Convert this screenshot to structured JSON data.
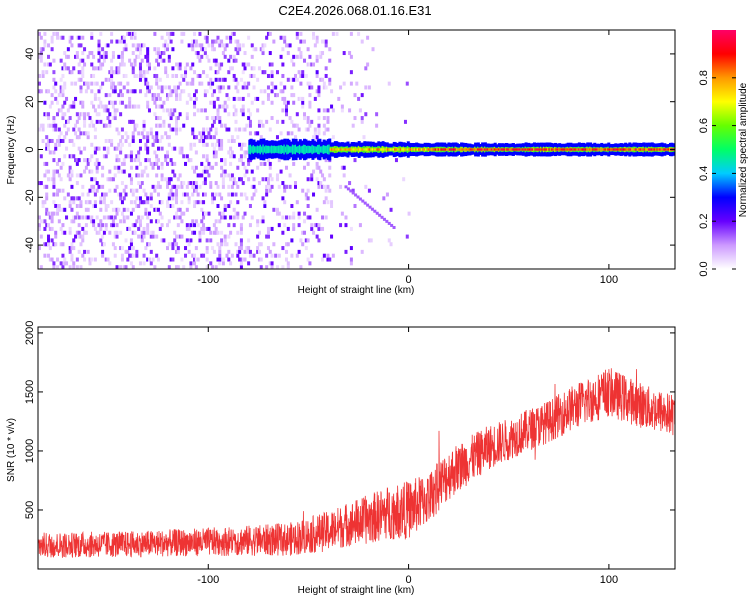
{
  "title": "C2E4.2026.068.01.16.E31",
  "chart_data": [
    {
      "type": "heatmap",
      "xlabel": "Height of straight line (km)",
      "ylabel": "Frequency (Hz)",
      "xlim": [
        -185,
        133
      ],
      "ylim": [
        -50,
        50
      ],
      "xticks": [
        -100,
        0,
        100
      ],
      "yticks": [
        -40,
        -20,
        0,
        20,
        40
      ],
      "colorbar": {
        "label": "Normalized spectral amplitude",
        "range": [
          0,
          1
        ],
        "ticks": [
          0.0,
          0.2,
          0.4,
          0.6,
          0.8
        ],
        "tick_labels": [
          "0.0",
          "0.2",
          "0.4",
          "0.6",
          "0.8"
        ],
        "colors": [
          "#ffffff",
          "#cc99ff",
          "#6600ff",
          "#0000ff",
          "#00ccff",
          "#00ff66",
          "#66ff00",
          "#ffff00",
          "#ff9900",
          "#ff0000",
          "#ff0066"
        ]
      },
      "features": {
        "noise_region_x": [
          -185,
          -40
        ],
        "carrier_frequency_hz": 0,
        "carrier_x_start": -80,
        "drift_line": {
          "x": [
            -32,
            -8
          ],
          "y": [
            -15,
            -32
          ]
        }
      }
    },
    {
      "type": "line",
      "xlabel": "Height of straight line (km)",
      "ylabel": "SNR (10 * v/v)",
      "xlim": [
        -185,
        133
      ],
      "ylim": [
        0,
        2050
      ],
      "xticks": [
        -100,
        0,
        100
      ],
      "yticks": [
        500,
        1000,
        1500,
        2000
      ],
      "color": "#ee3333",
      "envelope_x": [
        -185,
        -140,
        -100,
        -60,
        -40,
        -30,
        -20,
        -10,
        0,
        10,
        20,
        30,
        40,
        50,
        60,
        70,
        80,
        90,
        100,
        110,
        120,
        133
      ],
      "envelope_mid": [
        200,
        210,
        230,
        250,
        320,
        380,
        420,
        480,
        500,
        600,
        800,
        920,
        1030,
        1100,
        1180,
        1250,
        1350,
        1430,
        1500,
        1430,
        1360,
        1300
      ],
      "envelope_amp": [
        110,
        110,
        120,
        140,
        170,
        190,
        210,
        230,
        250,
        220,
        220,
        200,
        190,
        180,
        180,
        180,
        190,
        200,
        210,
        200,
        190,
        180
      ]
    }
  ]
}
